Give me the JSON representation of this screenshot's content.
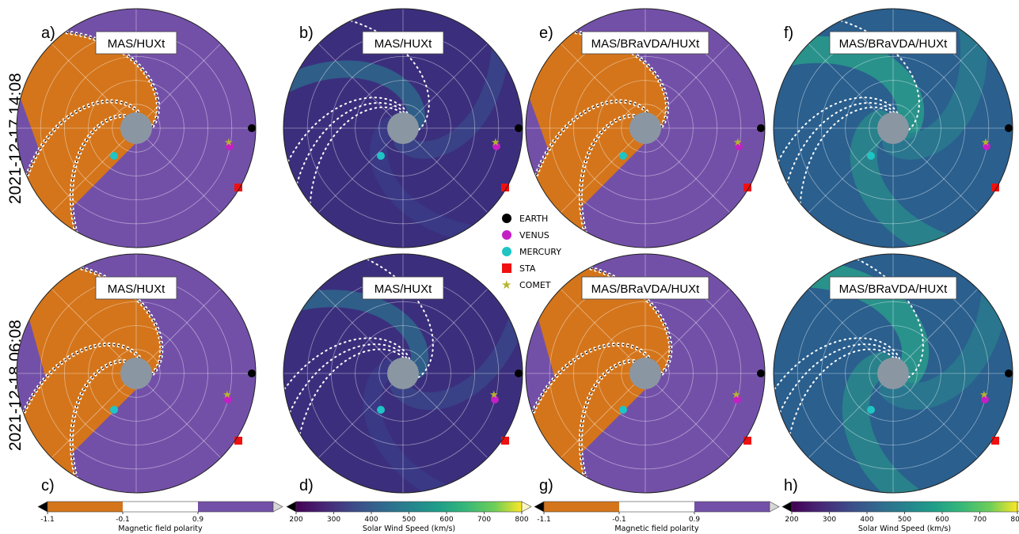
{
  "row_labels": [
    "2021-12-17 14:08",
    "2021-12-18 06:08"
  ],
  "colors": {
    "polarity_positive": "#7350a8",
    "polarity_negative": "#d4751b",
    "hcs_white": "#ffffff",
    "sun_disk": "#8a97a2",
    "earth": "#000000",
    "venus": "#c41fc4",
    "mercury": "#1fc4c4",
    "sta": "#f01010",
    "comet": "#b5b52e"
  },
  "legend": [
    {
      "label": "EARTH",
      "icon": "circle",
      "color": "#000000"
    },
    {
      "label": "VENUS",
      "icon": "circle",
      "color": "#c41fc4"
    },
    {
      "label": "MERCURY",
      "icon": "circle",
      "color": "#1fc4c4"
    },
    {
      "label": "STA",
      "icon": "square",
      "color": "#f01010"
    },
    {
      "label": "COMET",
      "icon": "star",
      "color": "#b5b52e"
    }
  ],
  "colorbars": [
    {
      "type": "polarity",
      "label": "Magnetic field polarity",
      "ticks": [
        "-1.1",
        "-0.1",
        "0.9"
      ]
    },
    {
      "type": "speed",
      "label": "Solar Wind Speed (km/s)",
      "ticks": [
        "200",
        "300",
        "400",
        "500",
        "600",
        "700",
        "800"
      ]
    },
    {
      "type": "polarity",
      "label": "Magnetic field polarity",
      "ticks": [
        "-1.1",
        "-0.1",
        "0.9"
      ]
    },
    {
      "type": "speed",
      "label": "Solar Wind Speed (km/s)",
      "ticks": [
        "200",
        "300",
        "400",
        "500",
        "600",
        "700",
        "800"
      ]
    }
  ],
  "chart_data": [
    {
      "panel": "a)",
      "type": "heatmap",
      "projection": "polar",
      "title": "MAS/HUXt",
      "quantity": "polarity",
      "time": "2021-12-17 14:08"
    },
    {
      "panel": "b)",
      "type": "heatmap",
      "projection": "polar",
      "title": "MAS/HUXt",
      "quantity": "speed",
      "range": [
        200,
        800
      ],
      "time": "2021-12-17 14:08"
    },
    {
      "panel": "e)",
      "type": "heatmap",
      "projection": "polar",
      "title": "MAS/BRaVDA/HUXt",
      "quantity": "polarity",
      "time": "2021-12-17 14:08"
    },
    {
      "panel": "f)",
      "type": "heatmap",
      "projection": "polar",
      "title": "MAS/BRaVDA/HUXt",
      "quantity": "speed",
      "range": [
        200,
        800
      ],
      "time": "2021-12-17 14:08"
    },
    {
      "panel": "c)",
      "type": "heatmap",
      "projection": "polar",
      "title": "MAS/HUXt",
      "quantity": "polarity",
      "time": "2021-12-18 06:08"
    },
    {
      "panel": "d)",
      "type": "heatmap",
      "projection": "polar",
      "title": "MAS/HUXt",
      "quantity": "speed",
      "range": [
        200,
        800
      ],
      "time": "2021-12-18 06:08"
    },
    {
      "panel": "g)",
      "type": "heatmap",
      "projection": "polar",
      "title": "MAS/BRaVDA/HUXt",
      "quantity": "polarity",
      "time": "2021-12-18 06:08"
    },
    {
      "panel": "h)",
      "type": "heatmap",
      "projection": "polar",
      "title": "MAS/BRaVDA/HUXt",
      "quantity": "speed",
      "range": [
        200,
        800
      ],
      "time": "2021-12-18 06:08"
    }
  ]
}
